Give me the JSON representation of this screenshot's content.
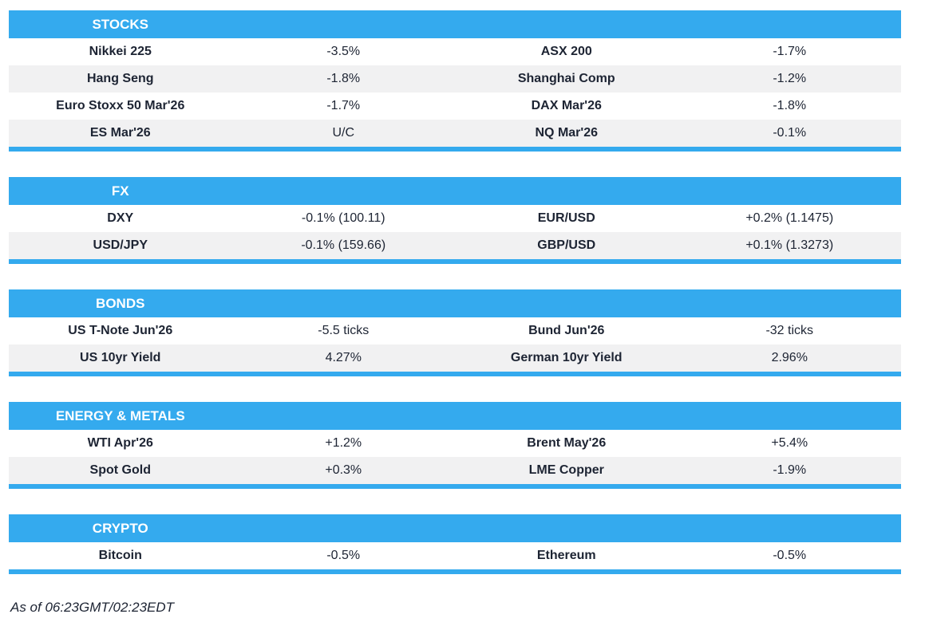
{
  "colors": {
    "accent_blue": "#34AAEE",
    "row_alt": "#F1F1F2",
    "text_dark": "#1D2433",
    "header_text": "#FFFFFF"
  },
  "sections": [
    {
      "title": "STOCKS",
      "rows": [
        [
          "Nikkei 225",
          "-3.5%",
          "ASX 200",
          "-1.7%"
        ],
        [
          "Hang Seng",
          "-1.8%",
          "Shanghai Comp",
          "-1.2%"
        ],
        [
          "Euro Stoxx 50 Mar'26",
          "-1.7%",
          "DAX Mar'26",
          "-1.8%"
        ],
        [
          "ES Mar'26",
          "U/C",
          "NQ Mar'26",
          "-0.1%"
        ]
      ]
    },
    {
      "title": "FX",
      "rows": [
        [
          "DXY",
          "-0.1% (100.11)",
          "EUR/USD",
          "+0.2% (1.1475)"
        ],
        [
          "USD/JPY",
          "-0.1% (159.66)",
          "GBP/USD",
          "+0.1% (1.3273)"
        ]
      ]
    },
    {
      "title": "BONDS",
      "rows": [
        [
          "US T-Note Jun'26",
          "-5.5 ticks",
          "Bund Jun'26",
          "-32 ticks"
        ],
        [
          "US 10yr Yield",
          "4.27%",
          "German 10yr Yield",
          "2.96%"
        ]
      ]
    },
    {
      "title": "ENERGY & METALS",
      "rows": [
        [
          "WTI Apr'26",
          "+1.2%",
          "Brent May'26",
          "+5.4%"
        ],
        [
          "Spot Gold",
          "+0.3%",
          "LME Copper",
          "-1.9%"
        ]
      ]
    },
    {
      "title": "CRYPTO",
      "rows": [
        [
          "Bitcoin",
          "-0.5%",
          "Ethereum",
          "-0.5%"
        ]
      ]
    }
  ],
  "footer": {
    "as_of": "As of 06:23GMT/02:23EDT"
  }
}
